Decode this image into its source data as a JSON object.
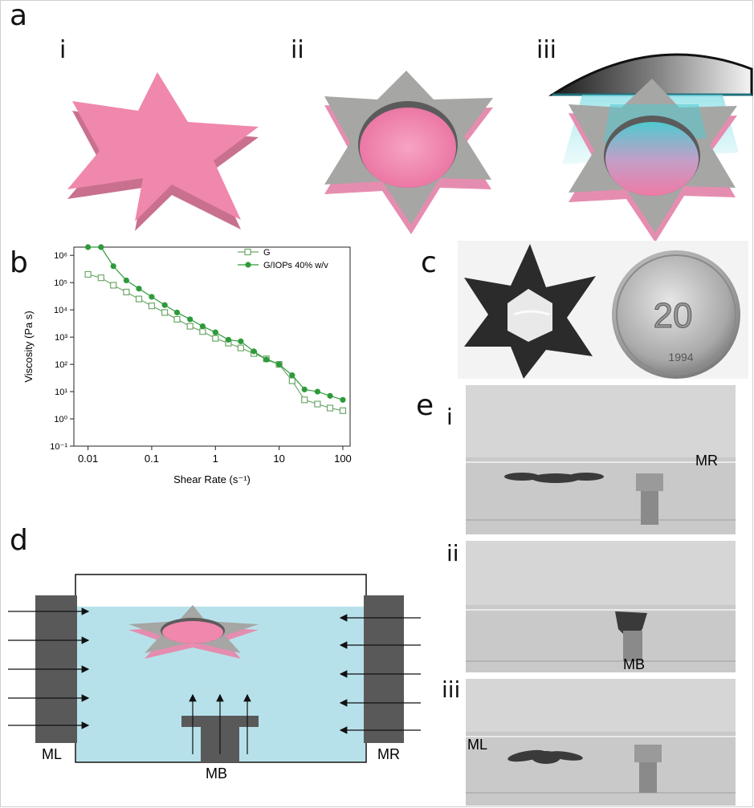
{
  "panels": {
    "a": "a",
    "b": "b",
    "c": "c",
    "d": "d",
    "e": "e"
  },
  "a_sub": [
    "i",
    "ii",
    "iii"
  ],
  "e_sub": [
    "i",
    "ii",
    "iii"
  ],
  "colors": {
    "star_pink": "#f087ad",
    "star_grey": "#a6a6a4",
    "series_G": "#6fa86a",
    "series_GIOP": "#2e9a3a",
    "water": "#b7e1ea",
    "magnet": "#595959"
  },
  "chart_data": {
    "type": "line",
    "xscale": "log",
    "yscale": "log",
    "xlabel": "Shear Rate (s⁻¹)",
    "ylabel": "Viscosity (Pa s)",
    "xticks": [
      "0.01",
      "0.1",
      "1",
      "10",
      "100"
    ],
    "yticks": [
      "10⁻¹",
      "10⁰",
      "10¹",
      "10²",
      "10³",
      "10⁴",
      "10⁵",
      "10⁶"
    ],
    "xlim": [
      0.006,
      130
    ],
    "ylim": [
      0.1,
      2000000
    ],
    "legend_position": "top-right",
    "series": [
      {
        "name": "G",
        "marker": "open-square",
        "x": [
          0.01,
          0.016,
          0.025,
          0.04,
          0.063,
          0.1,
          0.16,
          0.25,
          0.4,
          0.63,
          1,
          1.6,
          2.5,
          4,
          6.3,
          10,
          16,
          25,
          40,
          63,
          100
        ],
        "y": [
          200000,
          150000,
          80000,
          45000,
          25000,
          14000,
          8000,
          4500,
          2500,
          1600,
          900,
          600,
          400,
          250,
          160,
          100,
          25,
          5,
          3.5,
          2.5,
          2
        ]
      },
      {
        "name": "G/IOPs 40% w/v",
        "marker": "filled-circle",
        "x": [
          0.01,
          0.016,
          0.025,
          0.04,
          0.063,
          0.1,
          0.16,
          0.25,
          0.4,
          0.63,
          1,
          1.6,
          2.5,
          4,
          6.3,
          10,
          16,
          25,
          40,
          63,
          100
        ],
        "y": [
          2000000,
          2000000,
          400000,
          120000,
          60000,
          30000,
          15000,
          8000,
          4500,
          2500,
          1500,
          800,
          700,
          300,
          150,
          100,
          40,
          12,
          10,
          7,
          5
        ]
      }
    ]
  },
  "labels_d": {
    "left": "ML",
    "right": "MR",
    "bottom": "MB"
  },
  "labels_e": {
    "i": "MR",
    "ii": "MB",
    "iii": "ML"
  },
  "coin": {
    "value": "20",
    "year": "1994"
  }
}
